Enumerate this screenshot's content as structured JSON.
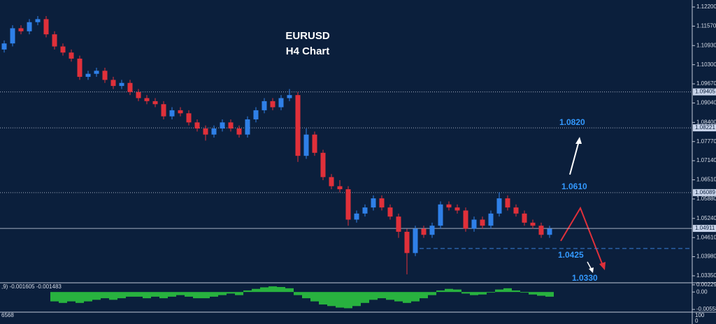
{
  "chart_data": [
    {
      "type": "candlestick",
      "title": "EURUSD",
      "subtitle": "H4 Chart",
      "open": [
        1.108,
        1.11,
        1.115,
        1.114,
        1.117,
        1.118,
        1.113,
        1.109,
        1.107,
        1.105,
        1.099,
        1.1,
        1.101,
        1.098,
        1.096,
        1.097,
        1.094,
        1.092,
        1.091,
        1.09,
        1.086,
        1.088,
        1.087,
        1.084,
        1.082,
        1.08,
        1.082,
        1.084,
        1.082,
        1.08,
        1.085,
        1.088,
        1.091,
        1.089,
        1.092,
        1.093,
        1.073,
        1.08,
        1.074,
        1.066,
        1.063,
        1.062,
        1.052,
        1.054,
        1.056,
        1.059,
        1.056,
        1.053,
        1.048,
        1.041,
        1.049,
        1.047,
        1.05,
        1.057,
        1.056,
        1.055,
        1.049,
        1.052,
        1.05,
        1.054,
        1.059,
        1.056,
        1.054,
        1.051,
        1.05,
        1.047
      ],
      "high": [
        1.111,
        1.116,
        1.116,
        1.118,
        1.119,
        1.119,
        1.114,
        1.11,
        1.108,
        1.106,
        1.101,
        1.102,
        1.102,
        1.099,
        1.098,
        1.098,
        1.095,
        1.093,
        1.092,
        1.091,
        1.089,
        1.089,
        1.088,
        1.085,
        1.083,
        1.083,
        1.085,
        1.085,
        1.083,
        1.086,
        1.089,
        1.092,
        1.092,
        1.093,
        1.095,
        1.094,
        1.082,
        1.081,
        1.075,
        1.067,
        1.065,
        1.063,
        1.055,
        1.057,
        1.06,
        1.06,
        1.057,
        1.054,
        1.049,
        1.05,
        1.05,
        1.051,
        1.058,
        1.058,
        1.057,
        1.056,
        1.053,
        1.053,
        1.055,
        1.061,
        1.06,
        1.057,
        1.055,
        1.052,
        1.051,
        1.05
      ],
      "low": [
        1.107,
        1.109,
        1.113,
        1.113,
        1.116,
        1.112,
        1.108,
        1.106,
        1.104,
        1.098,
        1.098,
        1.099,
        1.097,
        1.095,
        1.095,
        1.093,
        1.091,
        1.09,
        1.089,
        1.085,
        1.085,
        1.086,
        1.083,
        1.081,
        1.078,
        1.079,
        1.081,
        1.081,
        1.079,
        1.079,
        1.084,
        1.087,
        1.088,
        1.088,
        1.091,
        1.071,
        1.072,
        1.073,
        1.065,
        1.062,
        1.061,
        1.05,
        1.051,
        1.053,
        1.055,
        1.055,
        1.052,
        1.046,
        1.034,
        1.04,
        1.046,
        1.046,
        1.049,
        1.055,
        1.054,
        1.048,
        1.048,
        1.049,
        1.049,
        1.053,
        1.055,
        1.053,
        1.05,
        1.049,
        1.046,
        1.046
      ],
      "close": [
        1.11,
        1.115,
        1.114,
        1.117,
        1.118,
        1.113,
        1.109,
        1.107,
        1.105,
        1.099,
        1.1,
        1.101,
        1.098,
        1.096,
        1.097,
        1.094,
        1.092,
        1.091,
        1.09,
        1.086,
        1.088,
        1.087,
        1.084,
        1.082,
        1.08,
        1.082,
        1.084,
        1.082,
        1.08,
        1.085,
        1.088,
        1.091,
        1.089,
        1.092,
        1.093,
        1.073,
        1.08,
        1.074,
        1.066,
        1.063,
        1.062,
        1.052,
        1.054,
        1.056,
        1.059,
        1.056,
        1.053,
        1.048,
        1.041,
        1.049,
        1.047,
        1.05,
        1.057,
        1.056,
        1.055,
        1.049,
        1.052,
        1.05,
        1.054,
        1.059,
        1.056,
        1.054,
        1.051,
        1.05,
        1.047,
        1.049
      ],
      "up_color": "#2f80e8",
      "down_color": "#e0303a",
      "ylim": [
        1.0312,
        1.1243
      ],
      "yticks": [
        {
          "value": 1.122,
          "label": "1.12200"
        },
        {
          "value": 1.1157,
          "label": "1.11570"
        },
        {
          "value": 1.1093,
          "label": "1.10930"
        },
        {
          "value": 1.103,
          "label": "1.10300"
        },
        {
          "value": 1.0967,
          "label": "1.09670"
        },
        {
          "value": 1.0904,
          "label": "1.09040"
        },
        {
          "value": 1.084,
          "label": "1.08400"
        },
        {
          "value": 1.0777,
          "label": "1.07770"
        },
        {
          "value": 1.0714,
          "label": "1.07140"
        },
        {
          "value": 1.0651,
          "label": "1.06510"
        },
        {
          "value": 1.0588,
          "label": "1.05880"
        },
        {
          "value": 1.0524,
          "label": "1.05240"
        },
        {
          "value": 1.0461,
          "label": "1.04610"
        },
        {
          "value": 1.0398,
          "label": "1.03980"
        },
        {
          "value": 1.0335,
          "label": "1.03350"
        }
      ],
      "levels": [
        {
          "value": 1.09405,
          "label": "1.09405",
          "style": "dotted"
        },
        {
          "value": 1.08221,
          "label": "1.08221",
          "style": "dotted"
        },
        {
          "value": 1.06089,
          "label": "1.06089",
          "style": "dotted"
        },
        {
          "value": 1.04911,
          "label": "1.04911",
          "style": "solid"
        }
      ],
      "support_line": 1.0425,
      "annotations": [
        "1.0820",
        "1.0610",
        "1.0425",
        "1.0330"
      ]
    },
    {
      "type": "bar",
      "title": ",9) -0.001605 -0.001483",
      "color": "#2ecc40",
      "values": [
        null,
        null,
        null,
        null,
        null,
        null,
        -0.003,
        -0.0035,
        -0.003,
        -0.0035,
        -0.003,
        -0.0025,
        -0.002,
        -0.0025,
        -0.002,
        -0.0015,
        -0.0015,
        -0.002,
        -0.0015,
        -0.002,
        -0.0015,
        -0.001,
        -0.0015,
        -0.002,
        -0.002,
        -0.0015,
        -0.001,
        -0.0005,
        -0.001,
        0.0005,
        0.001,
        0.0015,
        0.0018,
        0.0016,
        0.0012,
        -0.001,
        -0.002,
        -0.003,
        -0.004,
        -0.0045,
        -0.005,
        -0.0052,
        -0.0045,
        -0.0035,
        -0.0025,
        -0.002,
        -0.0025,
        -0.003,
        -0.0035,
        -0.003,
        -0.002,
        -0.001,
        0.0005,
        0.001,
        0.0008,
        -0.0005,
        -0.001,
        -0.0008,
        -0.0002,
        0.0008,
        0.0012,
        0.0005,
        -0.0002,
        -0.0008,
        -0.0012,
        -0.0015
      ],
      "ylim": [
        -0.006,
        0.0025
      ],
      "yticks": [
        0.002299,
        {
          "value": 0,
          "label": "0.00"
        },
        -0.005582
      ],
      "sub_panel_labels": [
        "6568",
        "100",
        "0"
      ]
    }
  ]
}
